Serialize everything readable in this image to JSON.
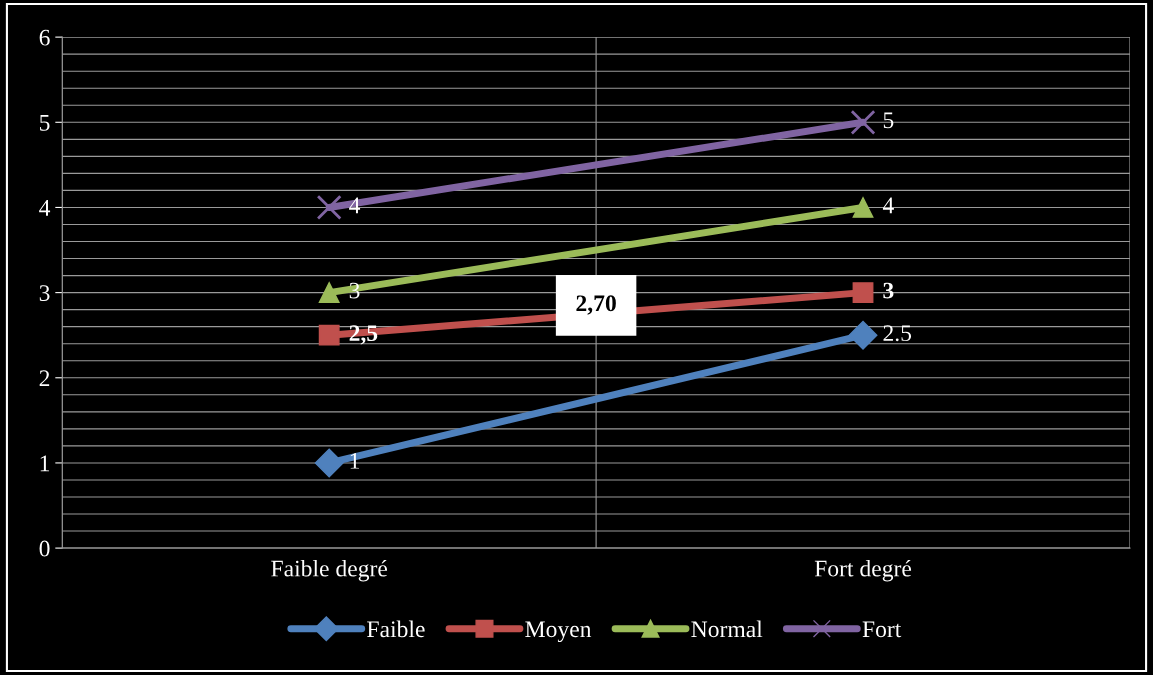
{
  "chart_data": {
    "type": "line",
    "categories": [
      "Faible degré",
      "Fort degré"
    ],
    "series": [
      {
        "name": "Faible",
        "color": "#4f81bd",
        "marker": "diamond",
        "values": [
          1,
          2.5
        ],
        "value_labels": [
          "1",
          "2.5"
        ]
      },
      {
        "name": "Moyen",
        "color": "#c0504d",
        "marker": "square",
        "values": [
          2.5,
          3
        ],
        "value_labels": [
          "2,5",
          "3"
        ]
      },
      {
        "name": "Normal",
        "color": "#9bbb59",
        "marker": "triangle",
        "values": [
          3,
          4
        ],
        "value_labels": [
          "3",
          "4"
        ]
      },
      {
        "name": "Fort",
        "color": "#8064a2",
        "marker": "cross",
        "values": [
          4,
          5
        ],
        "value_labels": [
          "4",
          "5"
        ]
      }
    ],
    "ylim": [
      0,
      6
    ],
    "yticks": [
      0,
      1,
      2,
      3,
      4,
      5,
      6
    ],
    "grid": true,
    "legend": "bottom",
    "annotations": [
      "2,70"
    ]
  }
}
